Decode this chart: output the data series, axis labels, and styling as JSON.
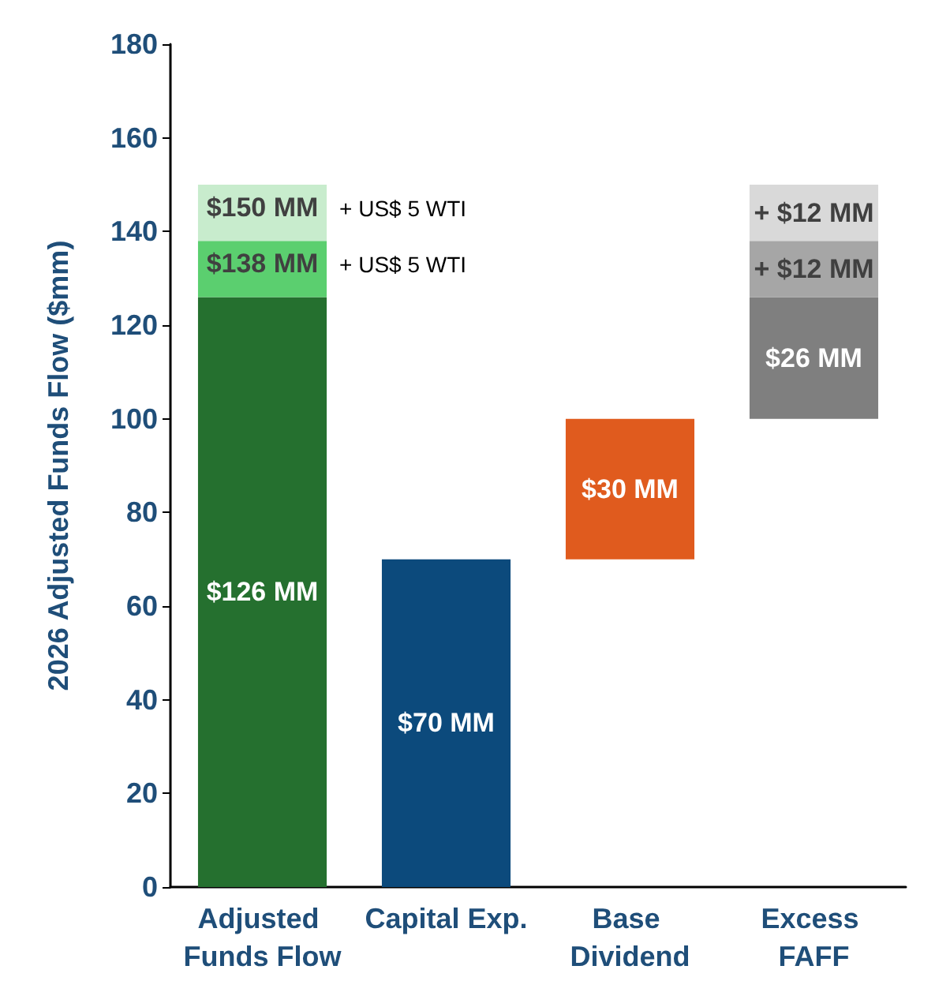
{
  "chart_data": {
    "type": "bar",
    "ylabel": "2026 Adjusted Funds Flow ($mm)",
    "categories": [
      "Adjusted Funds Flow",
      "Capital Exp.",
      "Base Dividend",
      "Excess FAFF"
    ],
    "series": [
      {
        "colors": [
          "#25702f",
          "#0c4a7c",
          "#e05b1e",
          "#7f7f7f"
        ],
        "base": [
          0,
          0,
          70,
          100
        ],
        "values": [
          126,
          70,
          30,
          26
        ],
        "value_labels": [
          "$126 MM",
          "$70 MM",
          "$30 MM",
          "$26 MM"
        ]
      },
      {
        "colors": [
          "#5bcf6f",
          null,
          null,
          "#a6a6a6"
        ],
        "base": [
          126,
          null,
          null,
          126
        ],
        "values": [
          12,
          null,
          null,
          12
        ],
        "value_labels": [
          null,
          null,
          null,
          "+ $12 MM"
        ]
      },
      {
        "colors": [
          "#c8eccd",
          null,
          null,
          "#d9d9d9"
        ],
        "base": [
          138,
          null,
          null,
          138
        ],
        "values": [
          12,
          null,
          null,
          12
        ],
        "value_labels": [
          null,
          null,
          null,
          "+ $12 MM"
        ]
      }
    ],
    "annotations": [
      {
        "text": "$150 MM",
        "x": "Adjusted Funds Flow",
        "y": 150
      },
      {
        "text": "$138 MM",
        "x": "Adjusted Funds Flow",
        "y": 138
      },
      "+ US$ 5 WTI",
      "+ US$ 5 WTI"
    ],
    "ylim": [
      0,
      180
    ],
    "yticks": [
      0,
      20,
      40,
      60,
      80,
      100,
      120,
      140,
      160,
      180
    ],
    "grid": false
  }
}
